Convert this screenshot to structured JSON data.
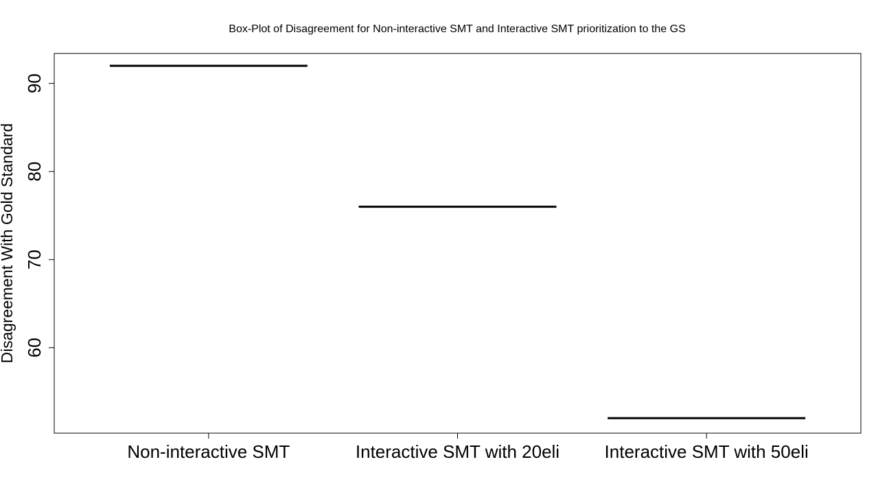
{
  "chart_data": {
    "type": "box",
    "title": "Box-Plot of Disagreement for Non-interactive SMT and Interactive SMT prioritization to the GS",
    "xlabel": "",
    "ylabel": "Disagreement With Gold Standard",
    "categories": [
      "Non-interactive SMT",
      "Interactive SMT with 20eli",
      "Interactive SMT with 50eli"
    ],
    "values": [
      92,
      76,
      52
    ],
    "ylim": [
      50.3,
      93.4
    ],
    "yticks": [
      60,
      70,
      80,
      90
    ],
    "grid": false,
    "legend": "none",
    "colors": {
      "line": "#000000",
      "frame": "#000000",
      "background": "#ffffff"
    }
  }
}
